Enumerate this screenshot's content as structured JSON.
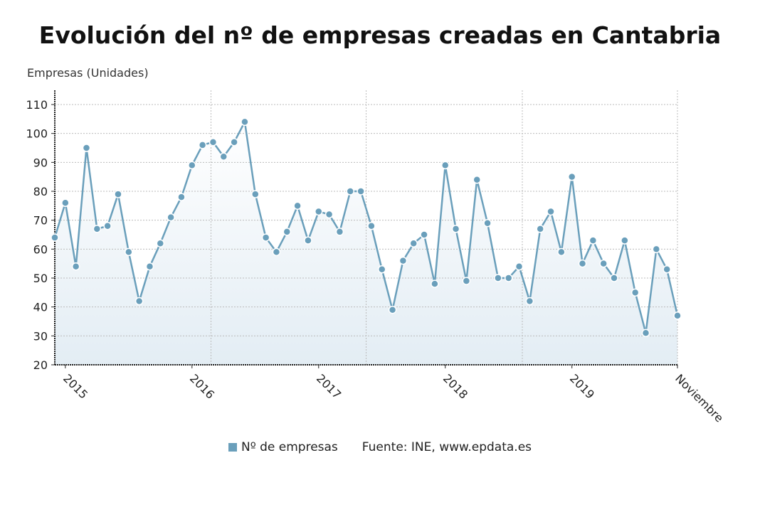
{
  "chart_data": {
    "type": "line",
    "title": "Evolución del nº de empresas creadas en Cantabria",
    "ylabel": "Empresas (Unidades)",
    "xlabel": "",
    "ylim": [
      20,
      110
    ],
    "yticks": [
      20,
      30,
      40,
      50,
      60,
      70,
      80,
      90,
      100,
      110
    ],
    "x_start": "2014-12",
    "x_end": "2019-11",
    "x_tick_labels": [
      {
        "month_index": 1,
        "label": "2015"
      },
      {
        "month_index": 13,
        "label": "2016"
      },
      {
        "month_index": 25,
        "label": "2017"
      },
      {
        "month_index": 37,
        "label": "2018"
      },
      {
        "month_index": 49,
        "label": "2019"
      },
      {
        "month_index": 59,
        "label": "Noviembre"
      }
    ],
    "grid": true,
    "area_fill": true,
    "legend_position": "bottom",
    "series": [
      {
        "name": "Nº de empresas",
        "color": "#6a9fbb",
        "values": [
          64,
          76,
          54,
          95,
          67,
          68,
          79,
          59,
          42,
          54,
          62,
          71,
          78,
          89,
          96,
          97,
          92,
          97,
          104,
          79,
          64,
          59,
          66,
          75,
          63,
          73,
          72,
          66,
          80,
          80,
          68,
          53,
          39,
          56,
          62,
          65,
          48,
          89,
          67,
          49,
          84,
          69,
          50,
          50,
          54,
          42,
          67,
          73,
          59,
          85,
          55,
          63,
          55,
          50,
          63,
          45,
          31,
          60,
          53,
          37
        ]
      }
    ],
    "source": "Fuente: INE, www.epdata.es"
  }
}
